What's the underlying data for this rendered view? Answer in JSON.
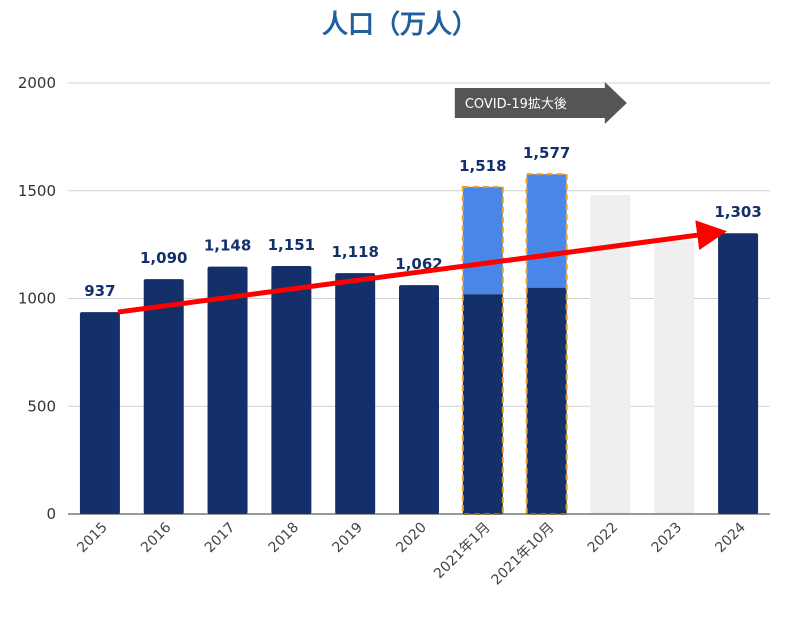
{
  "chart_data": {
    "type": "bar",
    "title": "人口（万人）",
    "xlabel": "",
    "ylabel": "",
    "ylim": [
      0,
      2000
    ],
    "yticks": [
      0,
      500,
      1000,
      1500,
      2000
    ],
    "ytick_labels": [
      "0",
      "500",
      "1000",
      "1500",
      "2000"
    ],
    "grid": true,
    "categories": [
      "2015",
      "2016",
      "2017",
      "2018",
      "2019",
      "2020",
      "2021年1月",
      "2021年10月",
      "2022",
      "2023",
      "2024"
    ],
    "values": [
      937,
      1090,
      1148,
      1151,
      1118,
      1062,
      1518,
      1577,
      1480,
      1270,
      1303
    ],
    "base_values": [
      937,
      1090,
      1148,
      1151,
      1118,
      1062,
      1020,
      1050,
      null,
      null,
      1303
    ],
    "data_labels": [
      "937",
      "1,090",
      "1,148",
      "1,151",
      "1,118",
      "1,062",
      "1,518",
      "1,577",
      "",
      "",
      "1,303"
    ],
    "bar_styles": [
      "solid",
      "solid",
      "solid",
      "solid",
      "solid",
      "solid",
      "stacked-highlight",
      "stacked-highlight",
      "faded",
      "faded",
      "solid"
    ],
    "trend_line": {
      "from_category": "2015",
      "from_value": 937,
      "to_category": "2024",
      "to_value": 1303
    },
    "annotation": {
      "text": "COVID-19拡大後",
      "start_category": "2021年1月"
    },
    "colors": {
      "base": "#13306a",
      "increase": "#4a86e8",
      "faded": "#efefef",
      "highlight_border": "#f0a020",
      "trend": "#ff0000",
      "annotation_bg": "#555555",
      "title": "#1f5f9e"
    }
  }
}
